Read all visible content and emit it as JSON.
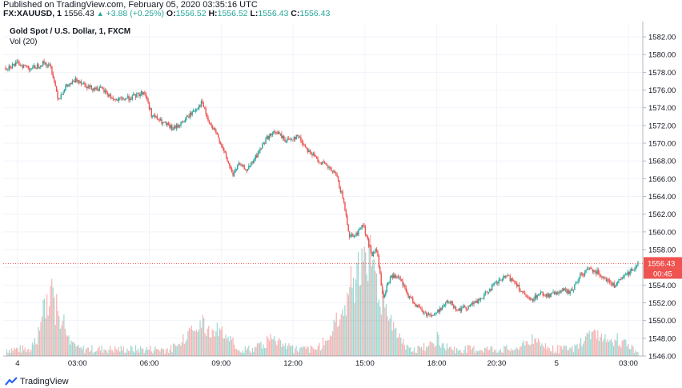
{
  "header": {
    "published": "Published on TradingView.com, February 05, 2020 03:35:16 UTC",
    "symbol": "FX:XAUUSD, 1",
    "last": "1556.43",
    "change": "+3.88 (+0.25%)",
    "o_label": "O:",
    "o_value": "1556.52",
    "h_label": "H:",
    "h_value": "1556.52",
    "l_label": "L:",
    "l_value": "1556.43",
    "c_label": "C:",
    "c_value": "1556.43"
  },
  "legend": {
    "title": "Gold Spot / U.S. Dollar, 1, FXCM",
    "volume": "Vol (20)"
  },
  "footer": {
    "brand": "TradingView"
  },
  "colors": {
    "up": "#26a69a",
    "down": "#ef5350",
    "price_line": "#ef5350",
    "grid": "#f0f3fa"
  },
  "chart_data": {
    "type": "candlestick",
    "title": "Gold Spot / U.S. Dollar, 1, FXCM",
    "ylim": [
      1546,
      1583
    ],
    "y_ticks": [
      "1546.00",
      "1548.00",
      "1550.00",
      "1552.00",
      "1554.00",
      "1556.00",
      "1558.00",
      "1560.00",
      "1562.00",
      "1564.00",
      "1566.00",
      "1568.00",
      "1570.00",
      "1572.00",
      "1574.00",
      "1576.00",
      "1578.00",
      "1580.00",
      "1582.00"
    ],
    "x_ticks": [
      {
        "label": "4",
        "t": 0.5
      },
      {
        "label": "03:00",
        "t": 3
      },
      {
        "label": "06:00",
        "t": 6
      },
      {
        "label": "09:00",
        "t": 9
      },
      {
        "label": "12:00",
        "t": 12
      },
      {
        "label": "15:00",
        "t": 15
      },
      {
        "label": "18:00",
        "t": 18
      },
      {
        "label": "20:30",
        "t": 20.5
      },
      {
        "label": "5",
        "t": 23
      },
      {
        "label": "03:00",
        "t": 26
      }
    ],
    "x_range_hours": [
      -0.1,
      26.6
    ],
    "current_price": "1556.43",
    "countdown": "00:45",
    "price_path": [
      [
        0.0,
        1578.5
      ],
      [
        0.5,
        1579.0
      ],
      [
        1.1,
        1578.4
      ],
      [
        1.6,
        1579.1
      ],
      [
        1.9,
        1578.5
      ],
      [
        2.2,
        1575.0
      ],
      [
        2.5,
        1576.3
      ],
      [
        3.0,
        1577.2
      ],
      [
        3.5,
        1576.3
      ],
      [
        4.0,
        1576.1
      ],
      [
        4.6,
        1574.8
      ],
      [
        5.3,
        1575.2
      ],
      [
        5.8,
        1575.8
      ],
      [
        6.1,
        1573.2
      ],
      [
        6.5,
        1572.4
      ],
      [
        7.0,
        1571.6
      ],
      [
        7.4,
        1572.4
      ],
      [
        7.8,
        1573.5
      ],
      [
        8.2,
        1574.6
      ],
      [
        8.5,
        1572.2
      ],
      [
        8.9,
        1570.6
      ],
      [
        9.2,
        1568.4
      ],
      [
        9.5,
        1566.4
      ],
      [
        9.7,
        1567.6
      ],
      [
        10.1,
        1567.0
      ],
      [
        10.5,
        1568.7
      ],
      [
        10.9,
        1570.6
      ],
      [
        11.3,
        1571.3
      ],
      [
        11.7,
        1570.3
      ],
      [
        12.2,
        1570.8
      ],
      [
        12.6,
        1569.3
      ],
      [
        13.0,
        1568.2
      ],
      [
        13.4,
        1567.4
      ],
      [
        13.8,
        1566.4
      ],
      [
        14.1,
        1563.6
      ],
      [
        14.35,
        1559.6
      ],
      [
        14.7,
        1559.8
      ],
      [
        14.9,
        1561.1
      ],
      [
        15.1,
        1559.1
      ],
      [
        15.3,
        1557.4
      ],
      [
        15.5,
        1558.0
      ],
      [
        15.75,
        1552.5
      ],
      [
        16.1,
        1555.1
      ],
      [
        16.5,
        1554.5
      ],
      [
        16.8,
        1552.8
      ],
      [
        17.2,
        1551.6
      ],
      [
        17.5,
        1550.8
      ],
      [
        17.9,
        1550.6
      ],
      [
        18.2,
        1551.5
      ],
      [
        18.5,
        1552.2
      ],
      [
        18.9,
        1551.2
      ],
      [
        19.3,
        1551.6
      ],
      [
        19.8,
        1552.3
      ],
      [
        20.3,
        1553.8
      ],
      [
        20.9,
        1555.0
      ],
      [
        21.3,
        1554.3
      ],
      [
        21.6,
        1553.0
      ],
      [
        21.9,
        1552.2
      ],
      [
        22.3,
        1553.1
      ],
      [
        22.7,
        1552.8
      ],
      [
        23.2,
        1553.4
      ],
      [
        23.6,
        1553.2
      ],
      [
        24.0,
        1555.1
      ],
      [
        24.4,
        1555.9
      ],
      [
        24.8,
        1555.3
      ],
      [
        25.1,
        1554.6
      ],
      [
        25.4,
        1553.9
      ],
      [
        25.8,
        1554.9
      ],
      [
        26.1,
        1555.6
      ],
      [
        26.4,
        1556.43
      ]
    ],
    "volume": {
      "baseline": 10,
      "spikes": [
        [
          1.85,
          70
        ],
        [
          2.2,
          35
        ],
        [
          7.7,
          25
        ],
        [
          8.3,
          30
        ],
        [
          9.0,
          25
        ],
        [
          11.2,
          20
        ],
        [
          13.8,
          30
        ],
        [
          14.3,
          35
        ],
        [
          14.6,
          45
        ],
        [
          15.0,
          80
        ],
        [
          15.3,
          60
        ],
        [
          15.7,
          35
        ],
        [
          16.1,
          25
        ],
        [
          18.0,
          15
        ],
        [
          22.0,
          15
        ],
        [
          24.5,
          30
        ],
        [
          25.5,
          15
        ]
      ]
    }
  }
}
